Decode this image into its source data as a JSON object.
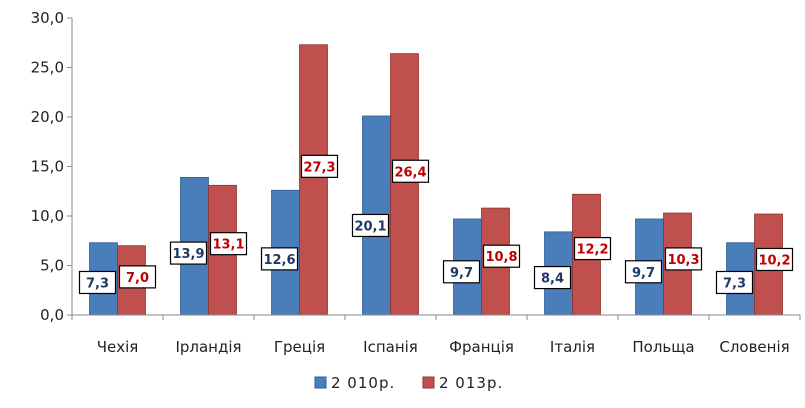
{
  "chart_data": {
    "type": "bar",
    "categories": [
      "Чехія",
      "Ірландія",
      "Греція",
      "Іспанія",
      "Франція",
      "Італія",
      "Польща",
      "Словенія"
    ],
    "series": [
      {
        "name": "2 010р.",
        "values": [
          7.3,
          13.9,
          12.6,
          20.1,
          9.7,
          8.4,
          9.7,
          7.3
        ],
        "labels": [
          "7,3",
          "13,9",
          "12,6",
          "20,1",
          "9,7",
          "8,4",
          "9,7",
          "7,3"
        ]
      },
      {
        "name": "2 013р.",
        "values": [
          7.0,
          13.1,
          27.3,
          26.4,
          10.8,
          12.2,
          10.3,
          10.2
        ],
        "labels": [
          "7,0",
          "13,1",
          "27,3",
          "26,4",
          "10,8",
          "12,2",
          "10,3",
          "10,2"
        ]
      }
    ],
    "y_ticks": [
      "0,0",
      "5,0",
      "10,0",
      "15,0",
      "20,0",
      "25,0",
      "30,0"
    ],
    "ylim": [
      0,
      30
    ],
    "grid": false,
    "legend_position": "bottom",
    "title": "",
    "xlabel": "",
    "ylabel": ""
  },
  "colors": {
    "series_2010": "#4a7ebb",
    "series_2010_edge": "#2f5e94",
    "series_2013": "#c0504d",
    "series_2013_edge": "#8f3330",
    "label_2010_text": "#1f3864",
    "label_2013_text": "#c00000",
    "axis": "#888888"
  }
}
